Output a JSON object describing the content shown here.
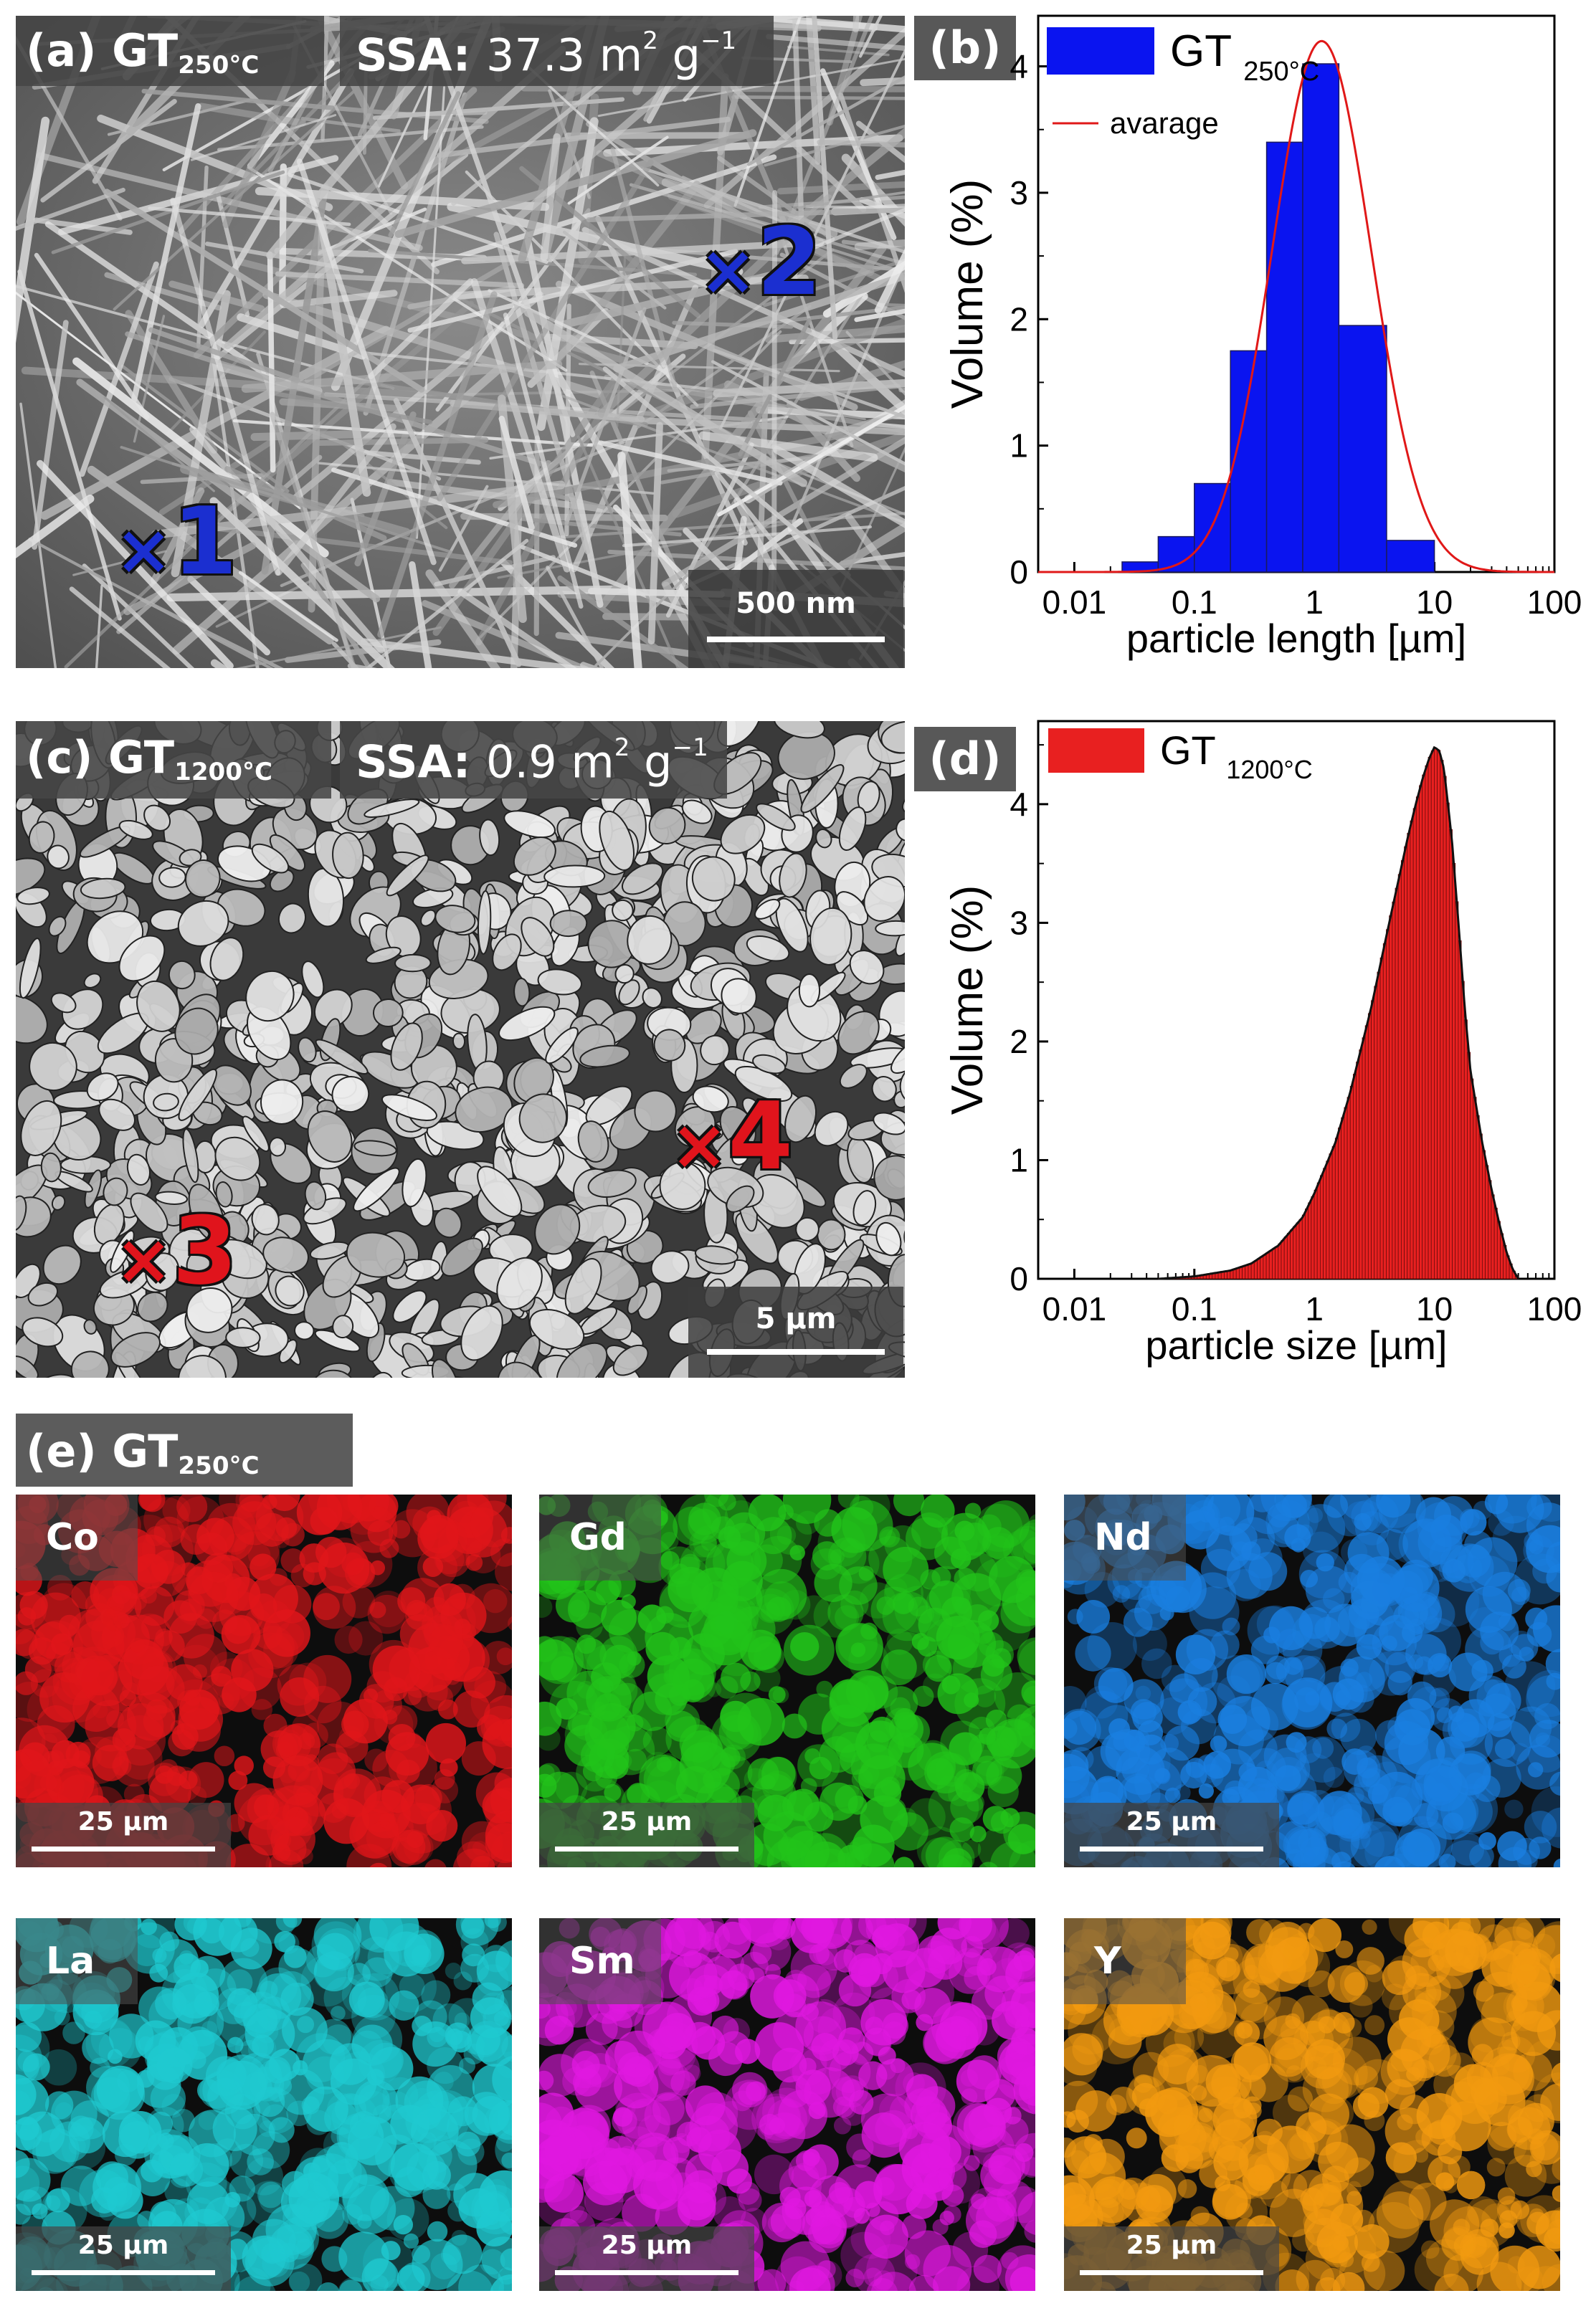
{
  "panel_a": {
    "label_prefix": "(a) GT",
    "label_sub": "250°C",
    "ssa_key": "SSA:",
    "ssa_value": "37.3 m",
    "ssa_sup1": "2",
    "ssa_unit": " g",
    "ssa_sup2": "−1",
    "scale": "500 nm",
    "markers": [
      {
        "x": "×",
        "n": "1"
      },
      {
        "x": "×",
        "n": "2"
      }
    ]
  },
  "panel_b": {
    "letter": "(b)"
  },
  "panel_c": {
    "label_prefix": "(c) GT",
    "label_sub": "1200°C",
    "ssa_key": "SSA:",
    "ssa_value": "0.9 m",
    "ssa_sup1": "2",
    "ssa_unit": " g",
    "ssa_sup2": "−1",
    "scale": "5 µm",
    "markers": [
      {
        "x": "×",
        "n": "3"
      },
      {
        "x": "×",
        "n": "4"
      }
    ]
  },
  "panel_d": {
    "letter": "(d)"
  },
  "panel_e": {
    "label_prefix": "(e) GT",
    "label_sub": "250°C",
    "maps": [
      {
        "element": "Co",
        "scale": "25 µm",
        "color": "#e0161a"
      },
      {
        "element": "Gd",
        "scale": "25 µm",
        "color": "#22c41a"
      },
      {
        "element": "Nd",
        "scale": "25 µm",
        "color": "#1a7fe0"
      },
      {
        "element": "La",
        "scale": "25 µm",
        "color": "#1fc9d0"
      },
      {
        "element": "Sm",
        "scale": "25 µm",
        "color": "#e018e0"
      },
      {
        "element": "Y",
        "scale": "25 µm",
        "color": "#f29a10"
      }
    ]
  },
  "chart_data": [
    {
      "type": "bar",
      "panel": "(b)",
      "xscale": "log",
      "xlim": [
        0.005,
        100
      ],
      "ylim": [
        0,
        4.4
      ],
      "xticks": [
        "0.01",
        "0.1",
        "1",
        "10",
        "100"
      ],
      "yticks": [
        "0",
        "1",
        "2",
        "3",
        "4"
      ],
      "xlabel": "particle length [µm]",
      "ylabel": "Volume (%)",
      "legend": {
        "position": "top-left",
        "entries": [
          "GT 250°C",
          "avarage"
        ]
      },
      "series": [
        {
          "name": "GT 250°C",
          "color": "#0a14f0",
          "bins": [
            {
              "lo": 0.025,
              "hi": 0.05,
              "value": 0.08
            },
            {
              "lo": 0.05,
              "hi": 0.1,
              "value": 0.28
            },
            {
              "lo": 0.1,
              "hi": 0.2,
              "value": 0.7
            },
            {
              "lo": 0.2,
              "hi": 0.4,
              "value": 1.75
            },
            {
              "lo": 0.4,
              "hi": 0.8,
              "value": 3.4
            },
            {
              "lo": 0.8,
              "hi": 1.6,
              "value": 4.02
            },
            {
              "lo": 1.6,
              "hi": 4.0,
              "value": 1.95
            },
            {
              "lo": 4.0,
              "hi": 10.0,
              "value": 0.25
            }
          ]
        },
        {
          "name": "avarage",
          "type": "line",
          "color": "#e01818",
          "lognormal": {
            "peak_x": 1.15,
            "peak_y": 4.2
          }
        }
      ]
    },
    {
      "type": "area",
      "panel": "(d)",
      "xscale": "log",
      "xlim": [
        0.005,
        100
      ],
      "ylim": [
        0,
        4.7
      ],
      "xticks": [
        "0.01",
        "0.1",
        "1",
        "10",
        "100"
      ],
      "yticks": [
        "0",
        "1",
        "2",
        "3",
        "4"
      ],
      "xlabel": "particle size [µm]",
      "ylabel": "Volume (%)",
      "legend": {
        "position": "top-left",
        "entries": [
          "GT 1200°C"
        ]
      },
      "series": [
        {
          "name": "GT 1200°C",
          "color": "#e82020",
          "x": [
            0.05,
            0.1,
            0.2,
            0.3,
            0.5,
            0.8,
            1,
            1.5,
            2,
            3,
            4,
            5,
            6,
            7,
            8,
            9,
            10,
            11,
            12,
            14,
            16,
            18,
            20,
            25,
            30,
            35,
            40,
            45,
            50
          ],
          "y": [
            0.0,
            0.02,
            0.07,
            0.13,
            0.28,
            0.52,
            0.72,
            1.15,
            1.58,
            2.3,
            2.9,
            3.35,
            3.72,
            4.0,
            4.22,
            4.38,
            4.48,
            4.45,
            4.3,
            3.7,
            2.95,
            2.25,
            1.75,
            1.15,
            0.75,
            0.45,
            0.22,
            0.08,
            0.0
          ]
        }
      ]
    }
  ]
}
